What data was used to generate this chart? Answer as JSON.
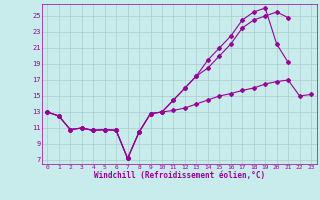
{
  "xlabel": "Windchill (Refroidissement éolien,°C)",
  "background_color": "#c8ecec",
  "line_color": "#990099",
  "grid_color": "#aacccc",
  "xlim": [
    -0.5,
    23.5
  ],
  "ylim": [
    6.5,
    26.5
  ],
  "xticks": [
    0,
    1,
    2,
    3,
    4,
    5,
    6,
    7,
    8,
    9,
    10,
    11,
    12,
    13,
    14,
    15,
    16,
    17,
    18,
    19,
    20,
    21,
    22,
    23
  ],
  "yticks": [
    7,
    9,
    11,
    13,
    15,
    17,
    19,
    21,
    23,
    25
  ],
  "series1_x": [
    0,
    1,
    2,
    3,
    4,
    5,
    6,
    7,
    8,
    9,
    10,
    11,
    12,
    13,
    14,
    15,
    16,
    17,
    18,
    19,
    20,
    21,
    22,
    23
  ],
  "series1_y": [
    13.0,
    12.5,
    10.8,
    11.0,
    10.7,
    10.8,
    10.7,
    7.2,
    10.5,
    12.8,
    13.0,
    13.2,
    13.5,
    14.0,
    14.5,
    15.0,
    15.3,
    15.7,
    16.0,
    16.5,
    16.8,
    17.0,
    15.0,
    15.2
  ],
  "series2_x": [
    0,
    1,
    2,
    3,
    4,
    5,
    6,
    7,
    8,
    9,
    10,
    11,
    12,
    13,
    14,
    15,
    16,
    17,
    18,
    19,
    20,
    21
  ],
  "series2_y": [
    13.0,
    12.5,
    10.8,
    11.0,
    10.7,
    10.8,
    10.7,
    7.2,
    10.5,
    12.8,
    13.0,
    14.5,
    16.0,
    17.5,
    18.5,
    20.0,
    21.5,
    23.5,
    24.5,
    25.0,
    25.5,
    24.8
  ],
  "series3_x": [
    0,
    1,
    2,
    3,
    4,
    5,
    6,
    7,
    8,
    9,
    10,
    11,
    12,
    13,
    14,
    15,
    16,
    17,
    18,
    19,
    20,
    21
  ],
  "series3_y": [
    13.0,
    12.5,
    10.8,
    11.0,
    10.7,
    10.8,
    10.7,
    7.2,
    10.5,
    12.8,
    13.0,
    14.5,
    16.0,
    17.5,
    19.5,
    21.0,
    22.5,
    24.5,
    25.5,
    26.0,
    21.5,
    19.2
  ]
}
